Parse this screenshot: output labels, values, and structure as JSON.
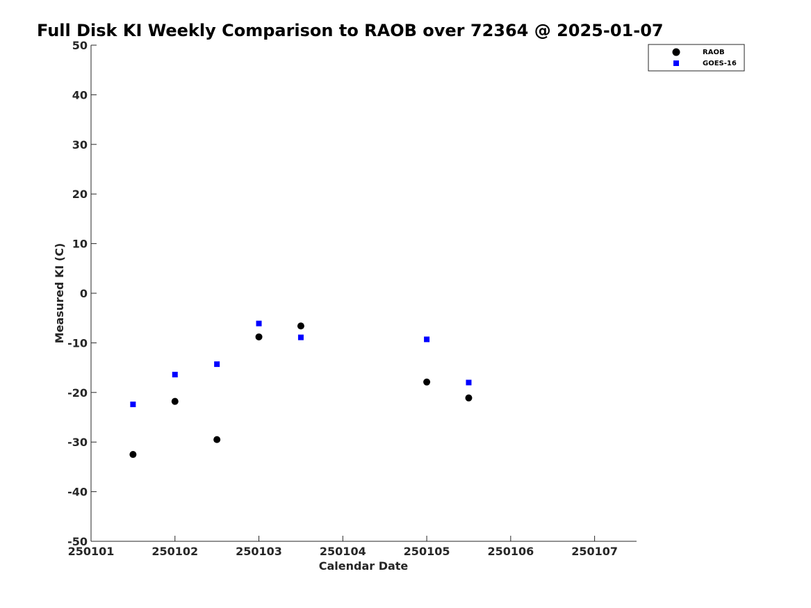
{
  "chart_data": {
    "type": "scatter",
    "title": "Full Disk KI Weekly Comparison to RAOB over 72364 @ 2025-01-07",
    "xlabel": "Calendar Date",
    "ylabel": "Measured KI (C)",
    "xlim": [
      250101,
      250107.5
    ],
    "ylim": [
      -50,
      50
    ],
    "xticks": [
      250101,
      250102,
      250103,
      250104,
      250105,
      250106,
      250107
    ],
    "xtick_labels": [
      "250101",
      "250102",
      "250103",
      "250104",
      "250105",
      "250106",
      "250107"
    ],
    "yticks": [
      -50,
      -40,
      -30,
      -20,
      -10,
      0,
      10,
      20,
      30,
      40,
      50
    ],
    "ytick_labels": [
      "-50",
      "-40",
      "-30",
      "-20",
      "-10",
      "0",
      "10",
      "20",
      "30",
      "40",
      "50"
    ],
    "grid": false,
    "legend_position": "top-right",
    "series": [
      {
        "name": "RAOB",
        "marker": "circle",
        "color": "#000000",
        "x": [
          250101.5,
          250102,
          250102.5,
          250103,
          250103.5,
          250105,
          250105.5
        ],
        "y": [
          -32.5,
          -21.8,
          -29.5,
          -8.8,
          -6.6,
          -17.9,
          -21.1
        ]
      },
      {
        "name": "GOES-16",
        "marker": "square",
        "color": "#0000ff",
        "x": [
          250101.5,
          250102,
          250102.5,
          250103,
          250103.5,
          250105,
          250105.5
        ],
        "y": [
          -22.4,
          -16.4,
          -14.3,
          -6.1,
          -8.9,
          -9.3,
          -18.0
        ]
      }
    ]
  }
}
